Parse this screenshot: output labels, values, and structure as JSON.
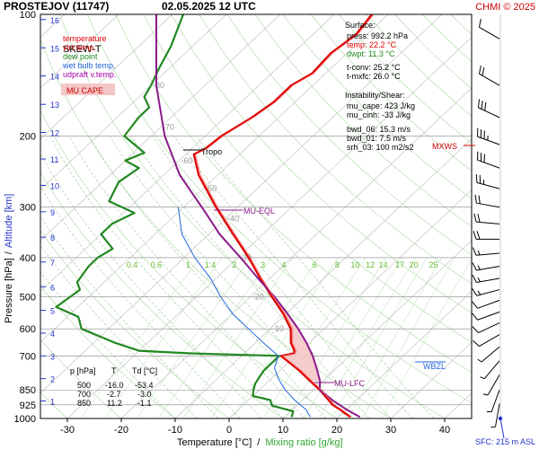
{
  "chart_data": {
    "type": "line",
    "title": "PROSTEJOV (11747)",
    "datetime": "02.05.2025 12 UTC",
    "copyright": "CHMI © 2025",
    "diagram_label": "SKEW-T",
    "xlabel": "Temperature [°C]",
    "xlabel_sep": "/",
    "xlabel_mix": "Mixing ratio [g/kg]",
    "ylabel": "Pressure [hPa]",
    "ylabel_sep": "/",
    "ylabel_alt": "Altitude [km]",
    "ylim": [
      1000,
      100
    ],
    "xlim": [
      -35,
      45
    ],
    "x_ticks": [
      -30,
      -20,
      -10,
      0,
      10,
      20,
      30,
      40
    ],
    "p_ticks": [
      100,
      200,
      300,
      400,
      500,
      600,
      700,
      850,
      925,
      1000
    ],
    "isotherm_labels": [
      -80,
      -70,
      -60,
      -50,
      -40,
      -30,
      -20,
      -10
    ],
    "altitude_km": [
      {
        "km": 1,
        "p": 905
      },
      {
        "km": 2,
        "p": 797
      },
      {
        "km": 3,
        "p": 700
      },
      {
        "km": 4,
        "p": 615
      },
      {
        "km": 5,
        "p": 540
      },
      {
        "km": 6,
        "p": 472
      },
      {
        "km": 7,
        "p": 410
      },
      {
        "km": 8,
        "p": 356
      },
      {
        "km": 9,
        "p": 308
      },
      {
        "km": 10,
        "p": 265
      },
      {
        "km": 11,
        "p": 228
      },
      {
        "km": 12,
        "p": 196
      },
      {
        "km": 13,
        "p": 167
      },
      {
        "km": 14,
        "p": 142
      },
      {
        "km": 15,
        "p": 121
      },
      {
        "km": 16,
        "p": 103
      }
    ],
    "mixing_ratio_labels": [
      "0.4",
      "0.6",
      "1",
      "1.4",
      "2",
      "3",
      "4",
      "6",
      "8",
      "10",
      "12",
      "14",
      "17",
      "20",
      "25"
    ],
    "legend": [
      {
        "label": "temperature",
        "color": "#dd0000"
      },
      {
        "label": "virt.temp.",
        "color": "#dd0000"
      },
      {
        "label": "dew point",
        "color": "#228822"
      },
      {
        "label": "wet bulb temp.",
        "color": "#2266dd"
      },
      {
        "label": "udpraft v.temp.",
        "color": "#aa00aa"
      },
      {
        "label": "MU CAPE",
        "color": "#cc0000"
      }
    ],
    "legend_placement": "top-left",
    "surface": {
      "heading": "Surface:",
      "press": "press: 992.2 hPa",
      "temp": "temp: 22.2 °C",
      "dwpt": "dwpt: 11.3 °C",
      "tconv": "t-conv: 25.2 °C",
      "tmxfc": "t-mxfc: 26.0 °C"
    },
    "instability": {
      "heading": "Instability/Shear:",
      "mu_cape": "mu_cape: 423 J/kg",
      "mu_cinh": "mu_cinh: -33 J/kg",
      "bwd_06": "bwd_06: 15.3 m/s",
      "bwd_01": "bwd_01: 7.5 m/s",
      "srh_03": "srh_03: 100 m2/s2"
    },
    "table": {
      "headers": [
        "p [hPa]",
        "T",
        "Td [°C]"
      ],
      "rows": [
        [
          "500",
          "-16.0",
          "-53.4"
        ],
        [
          "700",
          "-2.7",
          "-3.0"
        ],
        [
          "850",
          "11.2",
          "-1.1"
        ]
      ]
    },
    "levels": {
      "tropo": {
        "label": "Tropo",
        "p": 222
      },
      "mu_eql": {
        "label": "MU-EQL",
        "p": 306
      },
      "mu_lfc": {
        "label": "MU-LFC",
        "p": 808
      },
      "mxws": {
        "label": "MXWS",
        "p": 210
      },
      "wbzl": {
        "label": "WBZL",
        "p": 720
      }
    },
    "sfc_label": "SFC: 215 m ASL",
    "series": [
      {
        "name": "temperature",
        "color": "#dd0000",
        "points": [
          [
            992,
            22.2
          ],
          [
            950,
            18.8
          ],
          [
            925,
            16.5
          ],
          [
            900,
            14.8
          ],
          [
            850,
            11.2
          ],
          [
            800,
            7.0
          ],
          [
            760,
            3.5
          ],
          [
            700,
            -2.7
          ],
          [
            690,
            -0.8
          ],
          [
            680,
            -1.2
          ],
          [
            650,
            -3.4
          ],
          [
            600,
            -6.2
          ],
          [
            550,
            -10.6
          ],
          [
            500,
            -16.0
          ],
          [
            450,
            -21.8
          ],
          [
            400,
            -28.0
          ],
          [
            350,
            -35.5
          ],
          [
            300,
            -44.0
          ],
          [
            250,
            -53.5
          ],
          [
            222,
            -58.5
          ],
          [
            215,
            -57.5
          ],
          [
            200,
            -57.0
          ],
          [
            180,
            -55.0
          ],
          [
            165,
            -54.0
          ],
          [
            150,
            -54.0
          ],
          [
            140,
            -52.5
          ],
          [
            125,
            -53.0
          ],
          [
            112,
            -52.0
          ],
          [
            100,
            -53.0
          ]
        ]
      },
      {
        "name": "dew point",
        "color": "#228822",
        "points": [
          [
            992,
            11.3
          ],
          [
            960,
            10.5
          ],
          [
            930,
            5.5
          ],
          [
            900,
            4.0
          ],
          [
            880,
            0.0
          ],
          [
            850,
            -1.1
          ],
          [
            820,
            -2.0
          ],
          [
            790,
            -2.5
          ],
          [
            760,
            -3.0
          ],
          [
            700,
            -3.0
          ],
          [
            690,
            -20.0
          ],
          [
            680,
            -30.0
          ],
          [
            650,
            -36.0
          ],
          [
            600,
            -45.0
          ],
          [
            560,
            -48.0
          ],
          [
            530,
            -54.0
          ],
          [
            500,
            -53.4
          ],
          [
            480,
            -53.0
          ],
          [
            460,
            -55.0
          ],
          [
            420,
            -56.0
          ],
          [
            400,
            -56.0
          ],
          [
            380,
            -55.0
          ],
          [
            350,
            -60.0
          ],
          [
            330,
            -60.0
          ],
          [
            310,
            -58.0
          ],
          [
            290,
            -65.0
          ],
          [
            260,
            -67.0
          ],
          [
            240,
            -66.0
          ],
          [
            230,
            -70.0
          ],
          [
            220,
            -68.0
          ],
          [
            200,
            -75.0
          ],
          [
            180,
            -76.0
          ],
          [
            170,
            -76.0
          ],
          [
            160,
            -79.0
          ],
          [
            150,
            -80.0
          ],
          [
            135,
            -82.0
          ],
          [
            120,
            -84.0
          ],
          [
            100,
            -88.0
          ]
        ]
      },
      {
        "name": "wet bulb temp.",
        "color": "#2266dd",
        "points": [
          [
            992,
            14.8
          ],
          [
            950,
            12.5
          ],
          [
            900,
            8.5
          ],
          [
            850,
            4.8
          ],
          [
            800,
            1.5
          ],
          [
            750,
            -1.5
          ],
          [
            700,
            -3.2
          ],
          [
            650,
            -8.5
          ],
          [
            600,
            -14.0
          ],
          [
            550,
            -20.0
          ],
          [
            500,
            -25.5
          ],
          [
            450,
            -31.0
          ],
          [
            400,
            -38.0
          ],
          [
            350,
            -45.0
          ],
          [
            300,
            -51.0
          ]
        ]
      },
      {
        "name": "udpraft v.temp.",
        "color": "#8a1a8a",
        "points": [
          [
            992,
            24.0
          ],
          [
            950,
            20.0
          ],
          [
            900,
            15.5
          ],
          [
            850,
            11.2
          ],
          [
            808,
            9.5
          ],
          [
            750,
            6.3
          ],
          [
            700,
            3.2
          ],
          [
            650,
            -0.5
          ],
          [
            600,
            -4.8
          ],
          [
            550,
            -9.8
          ],
          [
            500,
            -15.5
          ],
          [
            450,
            -22.2
          ],
          [
            400,
            -29.5
          ],
          [
            350,
            -38.0
          ],
          [
            306,
            -45.5
          ],
          [
            250,
            -57.0
          ],
          [
            200,
            -67.5
          ],
          [
            150,
            -79.0
          ],
          [
            100,
            -93.0
          ]
        ]
      }
    ],
    "grid": true
  },
  "wind_barbs": [
    {
      "p": 115,
      "dir": 300,
      "spd": 12.0
    },
    {
      "p": 150,
      "dir": 300,
      "spd": 22.0
    },
    {
      "p": 180,
      "dir": 295,
      "spd": 28.0
    },
    {
      "p": 210,
      "dir": 290,
      "spd": 35.0
    },
    {
      "p": 240,
      "dir": 290,
      "spd": 28.0
    },
    {
      "p": 270,
      "dir": 285,
      "spd": 25.0
    },
    {
      "p": 300,
      "dir": 280,
      "spd": 22.0
    },
    {
      "p": 330,
      "dir": 275,
      "spd": 20.0
    },
    {
      "p": 360,
      "dir": 270,
      "spd": 19.0
    },
    {
      "p": 390,
      "dir": 265,
      "spd": 17.0
    },
    {
      "p": 420,
      "dir": 260,
      "spd": 16.0
    },
    {
      "p": 450,
      "dir": 260,
      "spd": 15.0
    },
    {
      "p": 480,
      "dir": 255,
      "spd": 14.0
    },
    {
      "p": 510,
      "dir": 250,
      "spd": 12.0
    },
    {
      "p": 545,
      "dir": 250,
      "spd": 11.0
    },
    {
      "p": 580,
      "dir": 245,
      "spd": 10.0
    },
    {
      "p": 620,
      "dir": 240,
      "spd": 8.0
    },
    {
      "p": 665,
      "dir": 230,
      "spd": 7.0
    },
    {
      "p": 720,
      "dir": 220,
      "spd": 6.0
    },
    {
      "p": 780,
      "dir": 210,
      "spd": 5.0
    },
    {
      "p": 850,
      "dir": 200,
      "spd": 5.0
    },
    {
      "p": 920,
      "dir": 190,
      "spd": 3.0
    }
  ]
}
